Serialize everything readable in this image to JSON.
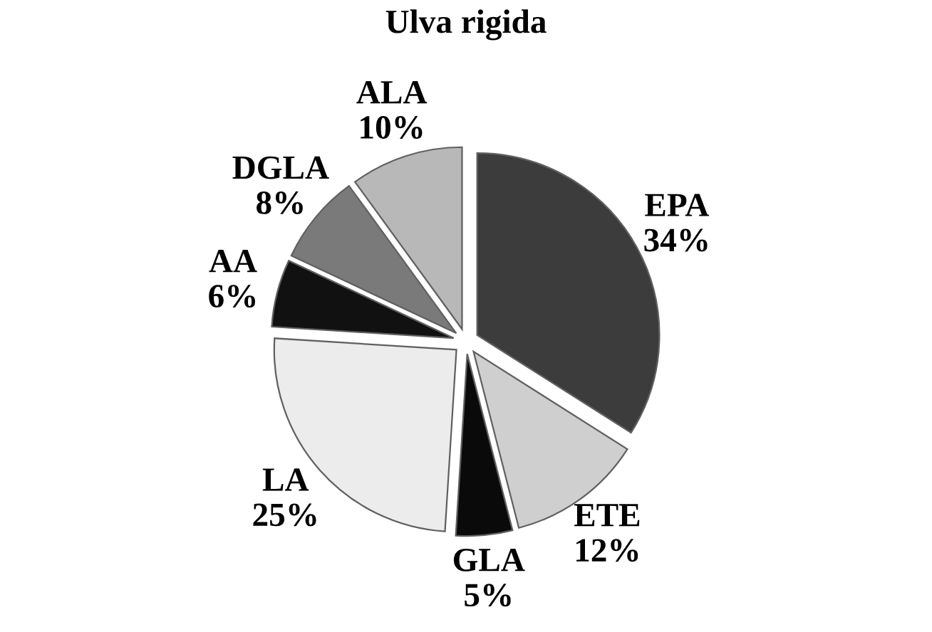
{
  "chart_data": {
    "type": "pie",
    "title": "Ulva rigida",
    "categories": [
      "EPA",
      "ETE",
      "GLA",
      "LA",
      "AA",
      "DGLA",
      "ALA"
    ],
    "values": [
      34,
      12,
      5,
      25,
      6,
      8,
      10
    ],
    "value_labels": [
      "34%",
      "12%",
      "5%",
      "25%",
      "6%",
      "8%",
      "10%"
    ],
    "colors": [
      "#3c3c3c",
      "#cfcfcf",
      "#0a0a0a",
      "#ececec",
      "#111111",
      "#7a7a7a",
      "#b8b8b8"
    ],
    "legend": false
  }
}
